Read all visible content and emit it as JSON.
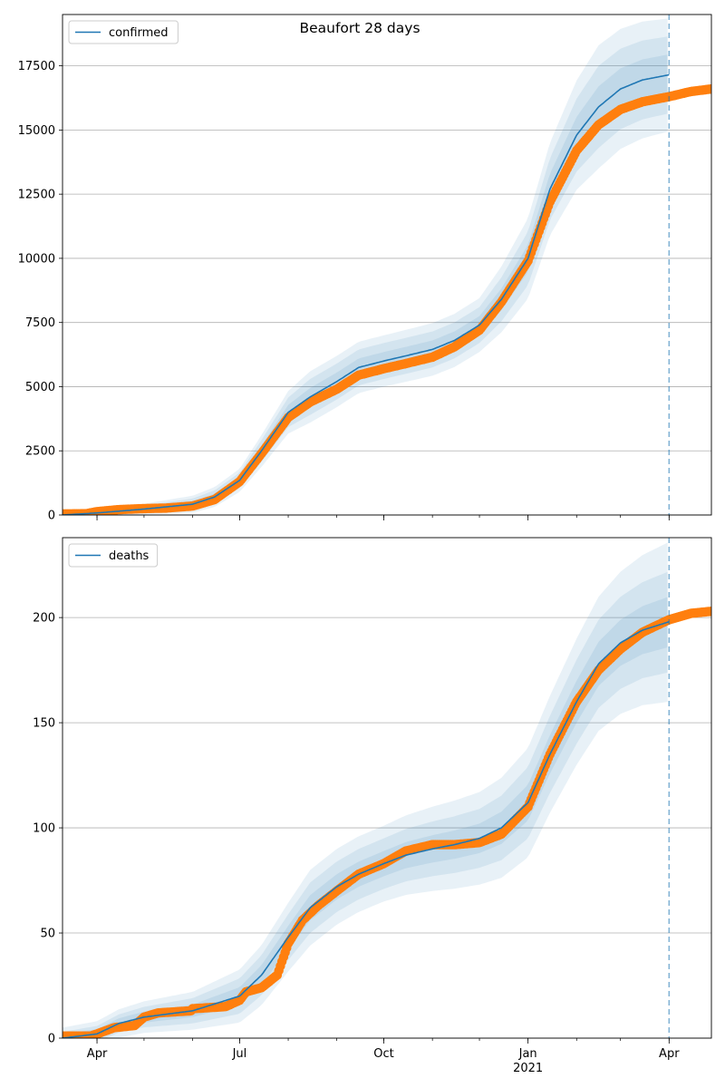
{
  "chart_data": [
    {
      "type": "line",
      "title": "Beaufort 28 days",
      "legend": {
        "label": "confirmed",
        "placement": "top-left"
      },
      "grid": "y",
      "x_axis": {
        "type": "date",
        "range": [
          "2020-03-10",
          "2021-04-28"
        ],
        "tick_labels": [],
        "minor_ticks": true
      },
      "ylim": [
        0,
        19500
      ],
      "y_ticks": [
        0,
        2500,
        5000,
        7500,
        10000,
        12500,
        15000,
        17500
      ],
      "forecast_marker_date": "2021-04-01",
      "model_line": {
        "name": "confirmed",
        "color": "#1f77b4",
        "points": [
          [
            "2020-03-10",
            0
          ],
          [
            "2020-04-01",
            80
          ],
          [
            "2020-05-01",
            230
          ],
          [
            "2020-06-01",
            420
          ],
          [
            "2020-06-15",
            700
          ],
          [
            "2020-07-01",
            1350
          ],
          [
            "2020-07-15",
            2500
          ],
          [
            "2020-08-01",
            4000
          ],
          [
            "2020-08-15",
            4600
          ],
          [
            "2020-09-01",
            5200
          ],
          [
            "2020-09-15",
            5750
          ],
          [
            "2020-10-01",
            6000
          ],
          [
            "2020-10-15",
            6200
          ],
          [
            "2020-11-01",
            6450
          ],
          [
            "2020-11-15",
            6800
          ],
          [
            "2020-12-01",
            7400
          ],
          [
            "2020-12-15",
            8400
          ],
          [
            "2021-01-01",
            10000
          ],
          [
            "2021-01-15",
            12700
          ],
          [
            "2021-02-01",
            14800
          ],
          [
            "2021-02-15",
            15900
          ],
          [
            "2021-03-01",
            16600
          ],
          [
            "2021-03-15",
            16950
          ],
          [
            "2021-04-01",
            17150
          ]
        ]
      },
      "band_half_widths": [
        {
          "t": "2020-03-10",
          "w": [
            0,
            0,
            0
          ]
        },
        {
          "t": "2020-07-01",
          "w": [
            150,
            300,
            450
          ]
        },
        {
          "t": "2020-08-15",
          "w": [
            350,
            700,
            1000
          ]
        },
        {
          "t": "2020-10-01",
          "w": [
            350,
            700,
            1000
          ]
        },
        {
          "t": "2020-12-01",
          "w": [
            350,
            700,
            1050
          ]
        },
        {
          "t": "2021-01-15",
          "w": [
            600,
            1200,
            1800
          ]
        },
        {
          "t": "2021-02-15",
          "w": [
            800,
            1600,
            2400
          ]
        },
        {
          "t": "2021-04-01",
          "w": [
            800,
            1500,
            2200
          ]
        }
      ],
      "observed": {
        "color": "#ff7f0e",
        "start": "2020-03-10",
        "end": "2021-04-28",
        "points": [
          [
            "2020-03-10",
            40
          ],
          [
            "2020-03-25",
            50
          ],
          [
            "2020-04-01",
            130
          ],
          [
            "2020-04-15",
            210
          ],
          [
            "2020-05-01",
            250
          ],
          [
            "2020-05-15",
            270
          ],
          [
            "2020-06-01",
            350
          ],
          [
            "2020-06-15",
            600
          ],
          [
            "2020-07-01",
            1300
          ],
          [
            "2020-07-15",
            2400
          ],
          [
            "2020-08-01",
            3800
          ],
          [
            "2020-08-15",
            4400
          ],
          [
            "2020-09-01",
            4900
          ],
          [
            "2020-09-15",
            5450
          ],
          [
            "2020-10-01",
            5700
          ],
          [
            "2020-10-15",
            5900
          ],
          [
            "2020-11-01",
            6150
          ],
          [
            "2020-11-15",
            6550
          ],
          [
            "2020-12-01",
            7200
          ],
          [
            "2020-12-15",
            8300
          ],
          [
            "2021-01-01",
            9900
          ],
          [
            "2021-01-15",
            12200
          ],
          [
            "2021-02-01",
            14200
          ],
          [
            "2021-02-15",
            15200
          ],
          [
            "2021-03-01",
            15800
          ],
          [
            "2021-03-15",
            16100
          ],
          [
            "2021-04-01",
            16300
          ],
          [
            "2021-04-15",
            16500
          ],
          [
            "2021-04-28",
            16600
          ]
        ]
      }
    },
    {
      "type": "line",
      "title": "",
      "legend": {
        "label": "deaths",
        "placement": "top-left"
      },
      "grid": "y",
      "x_axis": {
        "type": "date",
        "range": [
          "2020-03-10",
          "2021-04-28"
        ],
        "tick_labels": [
          {
            "date": "2020-04-01",
            "label": "Apr"
          },
          {
            "date": "2020-07-01",
            "label": "Jul"
          },
          {
            "date": "2020-10-01",
            "label": "Oct"
          },
          {
            "date": "2021-01-01",
            "label": "Jan"
          },
          {
            "date": "2021-04-01",
            "label": "Apr"
          }
        ],
        "year_label": {
          "date": "2021-01-01",
          "label": "2021"
        },
        "minor_ticks": true
      },
      "ylim": [
        0,
        238
      ],
      "y_ticks": [
        0,
        50,
        100,
        150,
        200
      ],
      "forecast_marker_date": "2021-04-01",
      "model_line": {
        "name": "deaths",
        "color": "#1f77b4",
        "points": [
          [
            "2020-03-10",
            0
          ],
          [
            "2020-04-01",
            2
          ],
          [
            "2020-04-15",
            7
          ],
          [
            "2020-05-01",
            10
          ],
          [
            "2020-06-01",
            13
          ],
          [
            "2020-07-01",
            20
          ],
          [
            "2020-07-15",
            30
          ],
          [
            "2020-08-01",
            48
          ],
          [
            "2020-08-15",
            62
          ],
          [
            "2020-09-01",
            72
          ],
          [
            "2020-09-15",
            78
          ],
          [
            "2020-10-01",
            83
          ],
          [
            "2020-10-15",
            87
          ],
          [
            "2020-11-01",
            90
          ],
          [
            "2020-11-15",
            92
          ],
          [
            "2020-12-01",
            95
          ],
          [
            "2020-12-15",
            100
          ],
          [
            "2021-01-01",
            112
          ],
          [
            "2021-01-15",
            135
          ],
          [
            "2021-02-01",
            160
          ],
          [
            "2021-02-15",
            178
          ],
          [
            "2021-03-01",
            188
          ],
          [
            "2021-03-15",
            194
          ],
          [
            "2021-04-01",
            198
          ]
        ]
      },
      "band_half_widths": [
        {
          "t": "2020-03-10",
          "w": [
            2,
            3,
            5
          ]
        },
        {
          "t": "2020-06-01",
          "w": [
            3,
            6,
            9
          ]
        },
        {
          "t": "2020-08-15",
          "w": [
            6,
            12,
            18
          ]
        },
        {
          "t": "2020-10-01",
          "w": [
            6,
            12,
            18
          ]
        },
        {
          "t": "2020-12-01",
          "w": [
            7,
            14,
            22
          ]
        },
        {
          "t": "2021-02-01",
          "w": [
            10,
            20,
            30
          ]
        },
        {
          "t": "2021-04-01",
          "w": [
            12,
            24,
            38
          ]
        }
      ],
      "observed": {
        "color": "#ff7f0e",
        "start": "2020-03-10",
        "end": "2021-04-28",
        "points": [
          [
            "2020-03-10",
            1
          ],
          [
            "2020-03-28",
            1
          ],
          [
            "2020-04-01",
            2
          ],
          [
            "2020-04-12",
            5
          ],
          [
            "2020-04-25",
            6
          ],
          [
            "2020-05-01",
            10
          ],
          [
            "2020-05-10",
            12
          ],
          [
            "2020-05-31",
            13
          ],
          [
            "2020-06-01",
            14
          ],
          [
            "2020-06-22",
            15
          ],
          [
            "2020-07-01",
            18
          ],
          [
            "2020-07-05",
            22
          ],
          [
            "2020-07-15",
            24
          ],
          [
            "2020-07-25",
            30
          ],
          [
            "2020-08-01",
            45
          ],
          [
            "2020-08-10",
            56
          ],
          [
            "2020-08-20",
            63
          ],
          [
            "2020-09-01",
            70
          ],
          [
            "2020-09-15",
            78
          ],
          [
            "2020-10-01",
            83
          ],
          [
            "2020-10-15",
            89
          ],
          [
            "2020-11-01",
            92
          ],
          [
            "2020-11-15",
            92
          ],
          [
            "2020-12-01",
            93
          ],
          [
            "2020-12-15",
            97
          ],
          [
            "2021-01-01",
            110
          ],
          [
            "2021-01-15",
            135
          ],
          [
            "2021-02-01",
            160
          ],
          [
            "2021-02-15",
            175
          ],
          [
            "2021-03-01",
            185
          ],
          [
            "2021-03-15",
            193
          ],
          [
            "2021-04-01",
            199
          ],
          [
            "2021-04-15",
            202
          ],
          [
            "2021-04-28",
            203
          ]
        ]
      }
    }
  ]
}
